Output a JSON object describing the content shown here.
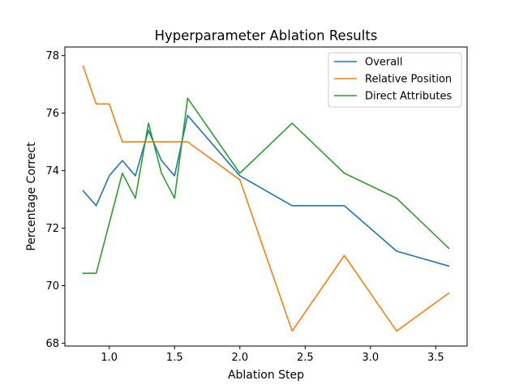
{
  "chart_data": {
    "type": "line",
    "title": "Hyperparameter Ablation Results",
    "xlabel": "Ablation Step",
    "ylabel": "Percentage Correct",
    "xlim": [
      0.66,
      3.74
    ],
    "ylim": [
      67.9,
      78.3
    ],
    "xticks": [
      1.0,
      1.5,
      2.0,
      2.5,
      3.0,
      3.5
    ],
    "xtick_labels": [
      "1.0",
      "1.5",
      "2.0",
      "2.5",
      "3.0",
      "3.5"
    ],
    "yticks": [
      68,
      70,
      72,
      74,
      76,
      78
    ],
    "ytick_labels": [
      "68",
      "70",
      "72",
      "74",
      "76",
      "78"
    ],
    "grid": false,
    "legend_position": "top-right",
    "series": [
      {
        "name": "Overall",
        "color": "#1f77b4",
        "x": [
          0.8,
          0.9,
          1.0,
          1.1,
          1.2,
          1.3,
          1.4,
          1.5,
          1.6,
          2.0,
          2.4,
          2.8,
          3.2,
          3.6
        ],
        "y": [
          73.3,
          72.78,
          73.82,
          74.35,
          73.82,
          75.4,
          74.35,
          73.82,
          75.92,
          73.82,
          72.78,
          72.78,
          71.2,
          70.68
        ]
      },
      {
        "name": "Relative Position",
        "color": "#ff7f0e",
        "x": [
          0.8,
          0.9,
          1.0,
          1.1,
          1.2,
          1.3,
          1.4,
          1.5,
          1.6,
          2.0,
          2.4,
          2.8,
          3.2,
          3.6
        ],
        "y": [
          77.63,
          76.32,
          76.32,
          75.0,
          75.0,
          75.0,
          75.0,
          75.0,
          75.0,
          73.68,
          68.42,
          71.05,
          68.42,
          69.74
        ]
      },
      {
        "name": "Direct Attributes",
        "color": "#2ca02c",
        "x": [
          0.8,
          0.9,
          1.0,
          1.1,
          1.2,
          1.3,
          1.4,
          1.5,
          1.6,
          2.0,
          2.4,
          2.8,
          3.2,
          3.6
        ],
        "y": [
          70.43,
          70.43,
          72.17,
          73.91,
          73.04,
          75.65,
          73.91,
          73.04,
          76.52,
          73.91,
          75.65,
          73.91,
          73.04,
          71.3
        ]
      }
    ]
  }
}
